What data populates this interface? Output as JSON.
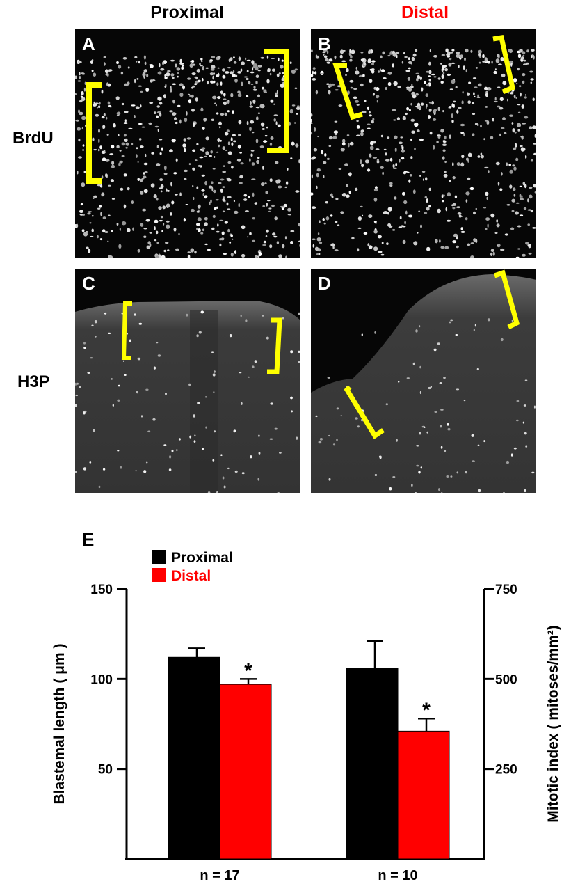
{
  "figure": {
    "column_headers": [
      {
        "label": "Proximal",
        "color": "#000000"
      },
      {
        "label": "Distal",
        "color": "#ff0000"
      }
    ],
    "row_headers": [
      "BrdU",
      "H3P"
    ],
    "panels": [
      {
        "letter": "A",
        "stain": "BrdU",
        "region": "Proximal"
      },
      {
        "letter": "B",
        "stain": "BrdU",
        "region": "Distal"
      },
      {
        "letter": "C",
        "stain": "H3P",
        "region": "Proximal"
      },
      {
        "letter": "D",
        "stain": "H3P",
        "region": "Distal"
      }
    ],
    "bracket_color": "#ffff00"
  },
  "chart_data": {
    "type": "bar",
    "panel_letter": "E",
    "categories": [
      "n = 17",
      "n = 10"
    ],
    "series": [
      {
        "name": "Proximal",
        "color": "#000000",
        "values": [
          112,
          106
        ],
        "errors": [
          5,
          15
        ],
        "significant": [
          false,
          false
        ]
      },
      {
        "name": "Distal",
        "color": "#ff0000",
        "values": [
          97,
          71
        ],
        "errors": [
          3,
          7
        ],
        "significant": [
          true,
          true
        ]
      }
    ],
    "significance_marker": "*",
    "ylabel_left": "Blastemal  length ( μm )",
    "ylabel_right": "Mitotic index ( mitoses/mm²)",
    "yticks_left": [
      "150",
      "100",
      "50"
    ],
    "yticks_right": [
      "750",
      "500",
      "250"
    ],
    "ylim_left": [
      0,
      150
    ],
    "ylim_right": [
      0,
      750
    ],
    "legend_position": "top-left",
    "grid": false
  }
}
